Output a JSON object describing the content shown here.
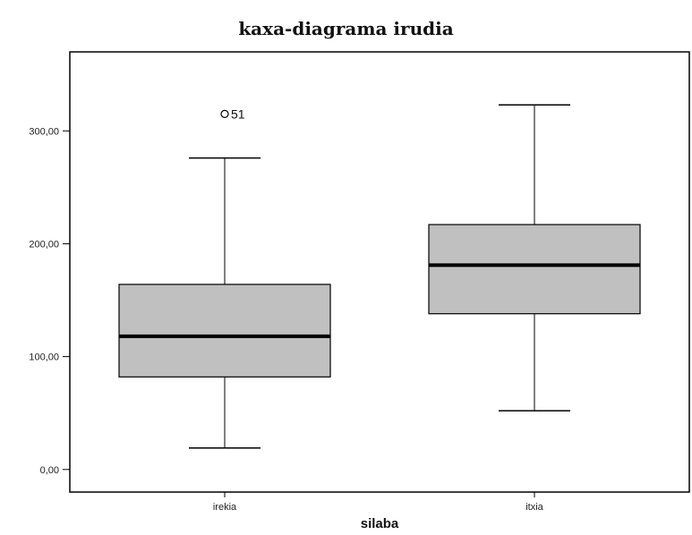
{
  "chart_data": {
    "type": "boxplot",
    "title": "kaxa-diagrama irudia",
    "xlabel": "silaba",
    "ylabel": "",
    "ylim": [
      -20,
      370
    ],
    "yticks": [
      {
        "value": 0,
        "label": "0,00"
      },
      {
        "value": 100,
        "label": "100,00"
      },
      {
        "value": 200,
        "label": "200,00"
      },
      {
        "value": 300,
        "label": "300,00"
      }
    ],
    "categories": [
      "irekia",
      "itxia"
    ],
    "boxes": [
      {
        "category": "irekia",
        "min": 19,
        "q1": 82,
        "median": 118,
        "q3": 164,
        "max": 276,
        "outliers": [
          {
            "value": 315,
            "label": "51"
          }
        ]
      },
      {
        "category": "itxia",
        "min": 52,
        "q1": 138,
        "median": 181,
        "q3": 217,
        "max": 323,
        "outliers": []
      }
    ],
    "colors": {
      "box_fill": "#c0c0c0",
      "stroke": "#000000"
    }
  }
}
